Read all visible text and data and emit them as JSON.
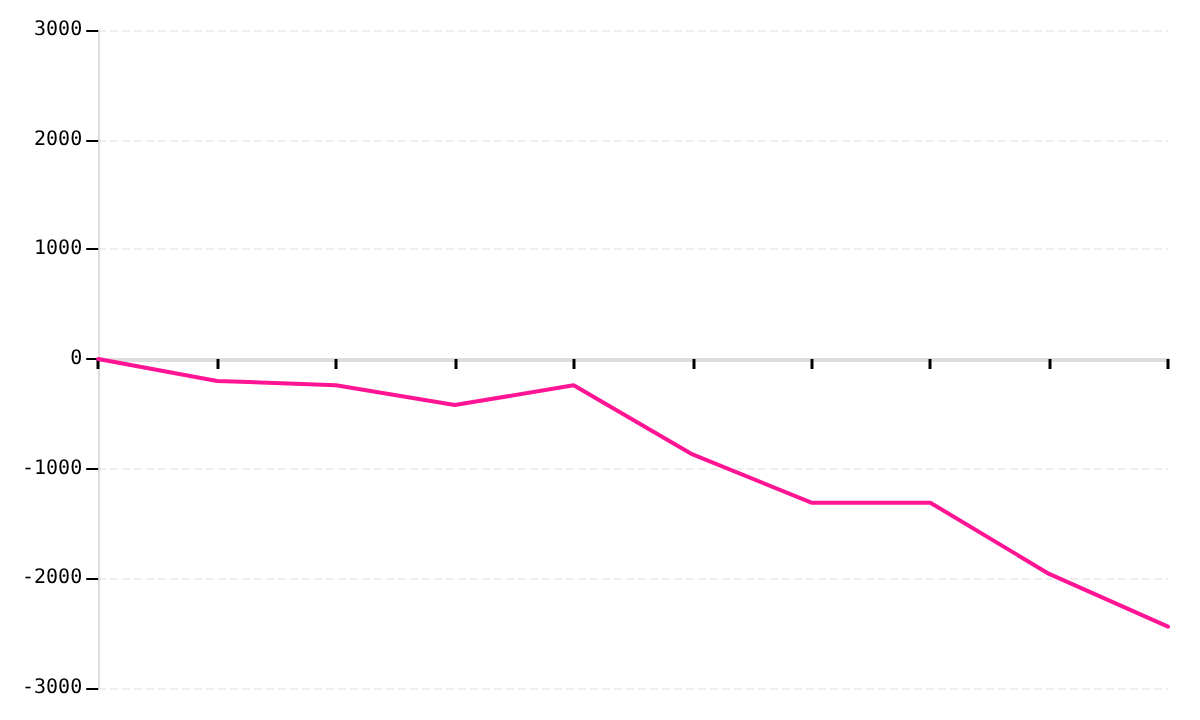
{
  "chart_data": {
    "type": "line",
    "categories": [
      null,
      null,
      null,
      null,
      null,
      null,
      null,
      null,
      null,
      null
    ],
    "series": [
      {
        "color": "#ff1493",
        "values": [
          0,
          -200,
          -240,
          -420,
          -240,
          -870,
          -1310,
          -1310,
          -1960,
          -2440
        ]
      }
    ],
    "ylim": [
      -3000,
      3000
    ],
    "yticks": [
      -3000,
      -2000,
      -1000,
      0,
      1000,
      2000,
      3000
    ],
    "grid": "y",
    "tick_labels": "y",
    "marker": "none",
    "line_style": "solid"
  }
}
